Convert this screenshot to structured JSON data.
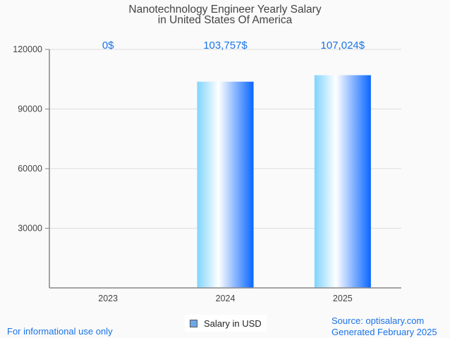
{
  "chart_data": {
    "type": "bar",
    "title": "Nanotechnology Engineer Yearly Salary",
    "subtitle": "in United States Of America",
    "categories": [
      "2023",
      "2024",
      "2025"
    ],
    "series": [
      {
        "name": "Salary in USD",
        "values": [
          0,
          103757,
          107024
        ]
      }
    ],
    "data_labels": [
      "0$",
      "103,757$",
      "107,024$"
    ],
    "yticks": [
      30000,
      60000,
      90000,
      120000
    ],
    "ytick_labels": [
      "30000",
      "60000",
      "90000",
      "120000"
    ],
    "ylim": [
      0,
      120000
    ],
    "xlabel": "",
    "ylabel": "",
    "grid": true,
    "legend_position": "bottom-center",
    "colors": {
      "bar_gradient": [
        "#7fd4ff",
        "#ffffff",
        "#0a66ff"
      ],
      "label": "#1a73e8",
      "legend_swatch": "#6fa8e8"
    }
  },
  "footer": {
    "disclaimer": "For informational use only",
    "source": "Source: optisalary.com",
    "generated": "Generated February 2025"
  }
}
